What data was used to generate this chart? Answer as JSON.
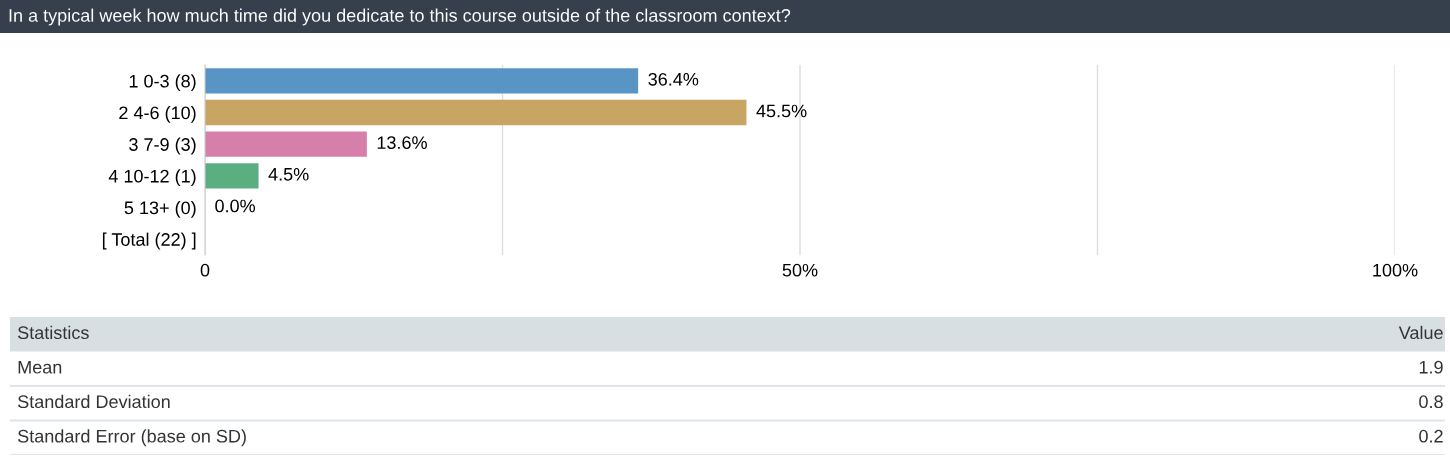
{
  "chart_data": [
    {
      "type": "bar",
      "orientation": "horizontal",
      "title": "In a typical week how much time did you dedicate to this course outside of the classroom context?",
      "categories": [
        "1 0-3 (8)",
        "2 4-6 (10)",
        "3 7-9 (3)",
        "4 10-12 (1)",
        "5 13+ (0)",
        "[ Total (22) ]"
      ],
      "values": [
        36.4,
        45.5,
        13.6,
        4.5,
        0.0,
        null
      ],
      "colors": [
        "#5894c4",
        "#c9a564",
        "#d77fab",
        "#5bae80",
        "#5894c4",
        "#5894c4"
      ],
      "value_labels": [
        "36.4%",
        "45.5%",
        "13.6%",
        "4.5%",
        "0.0%",
        null
      ],
      "xlim": [
        0,
        100
      ],
      "xticks": [
        {
          "value": 0,
          "label": "0"
        },
        {
          "value": 25,
          "label": null
        },
        {
          "value": 50,
          "label": "50%"
        },
        {
          "value": 75,
          "label": null
        },
        {
          "value": 100,
          "label": "100%"
        }
      ],
      "grid": "x"
    },
    {
      "type": "other",
      "annotations": [
        "Statistics",
        "Value"
      ],
      "categories": [
        "Mean",
        "Standard Deviation",
        "Standard Error (base on SD)"
      ],
      "values": [
        1.9,
        0.8,
        0.2
      ],
      "value_labels": [
        "1.9",
        "0.8",
        "0.2"
      ]
    }
  ]
}
